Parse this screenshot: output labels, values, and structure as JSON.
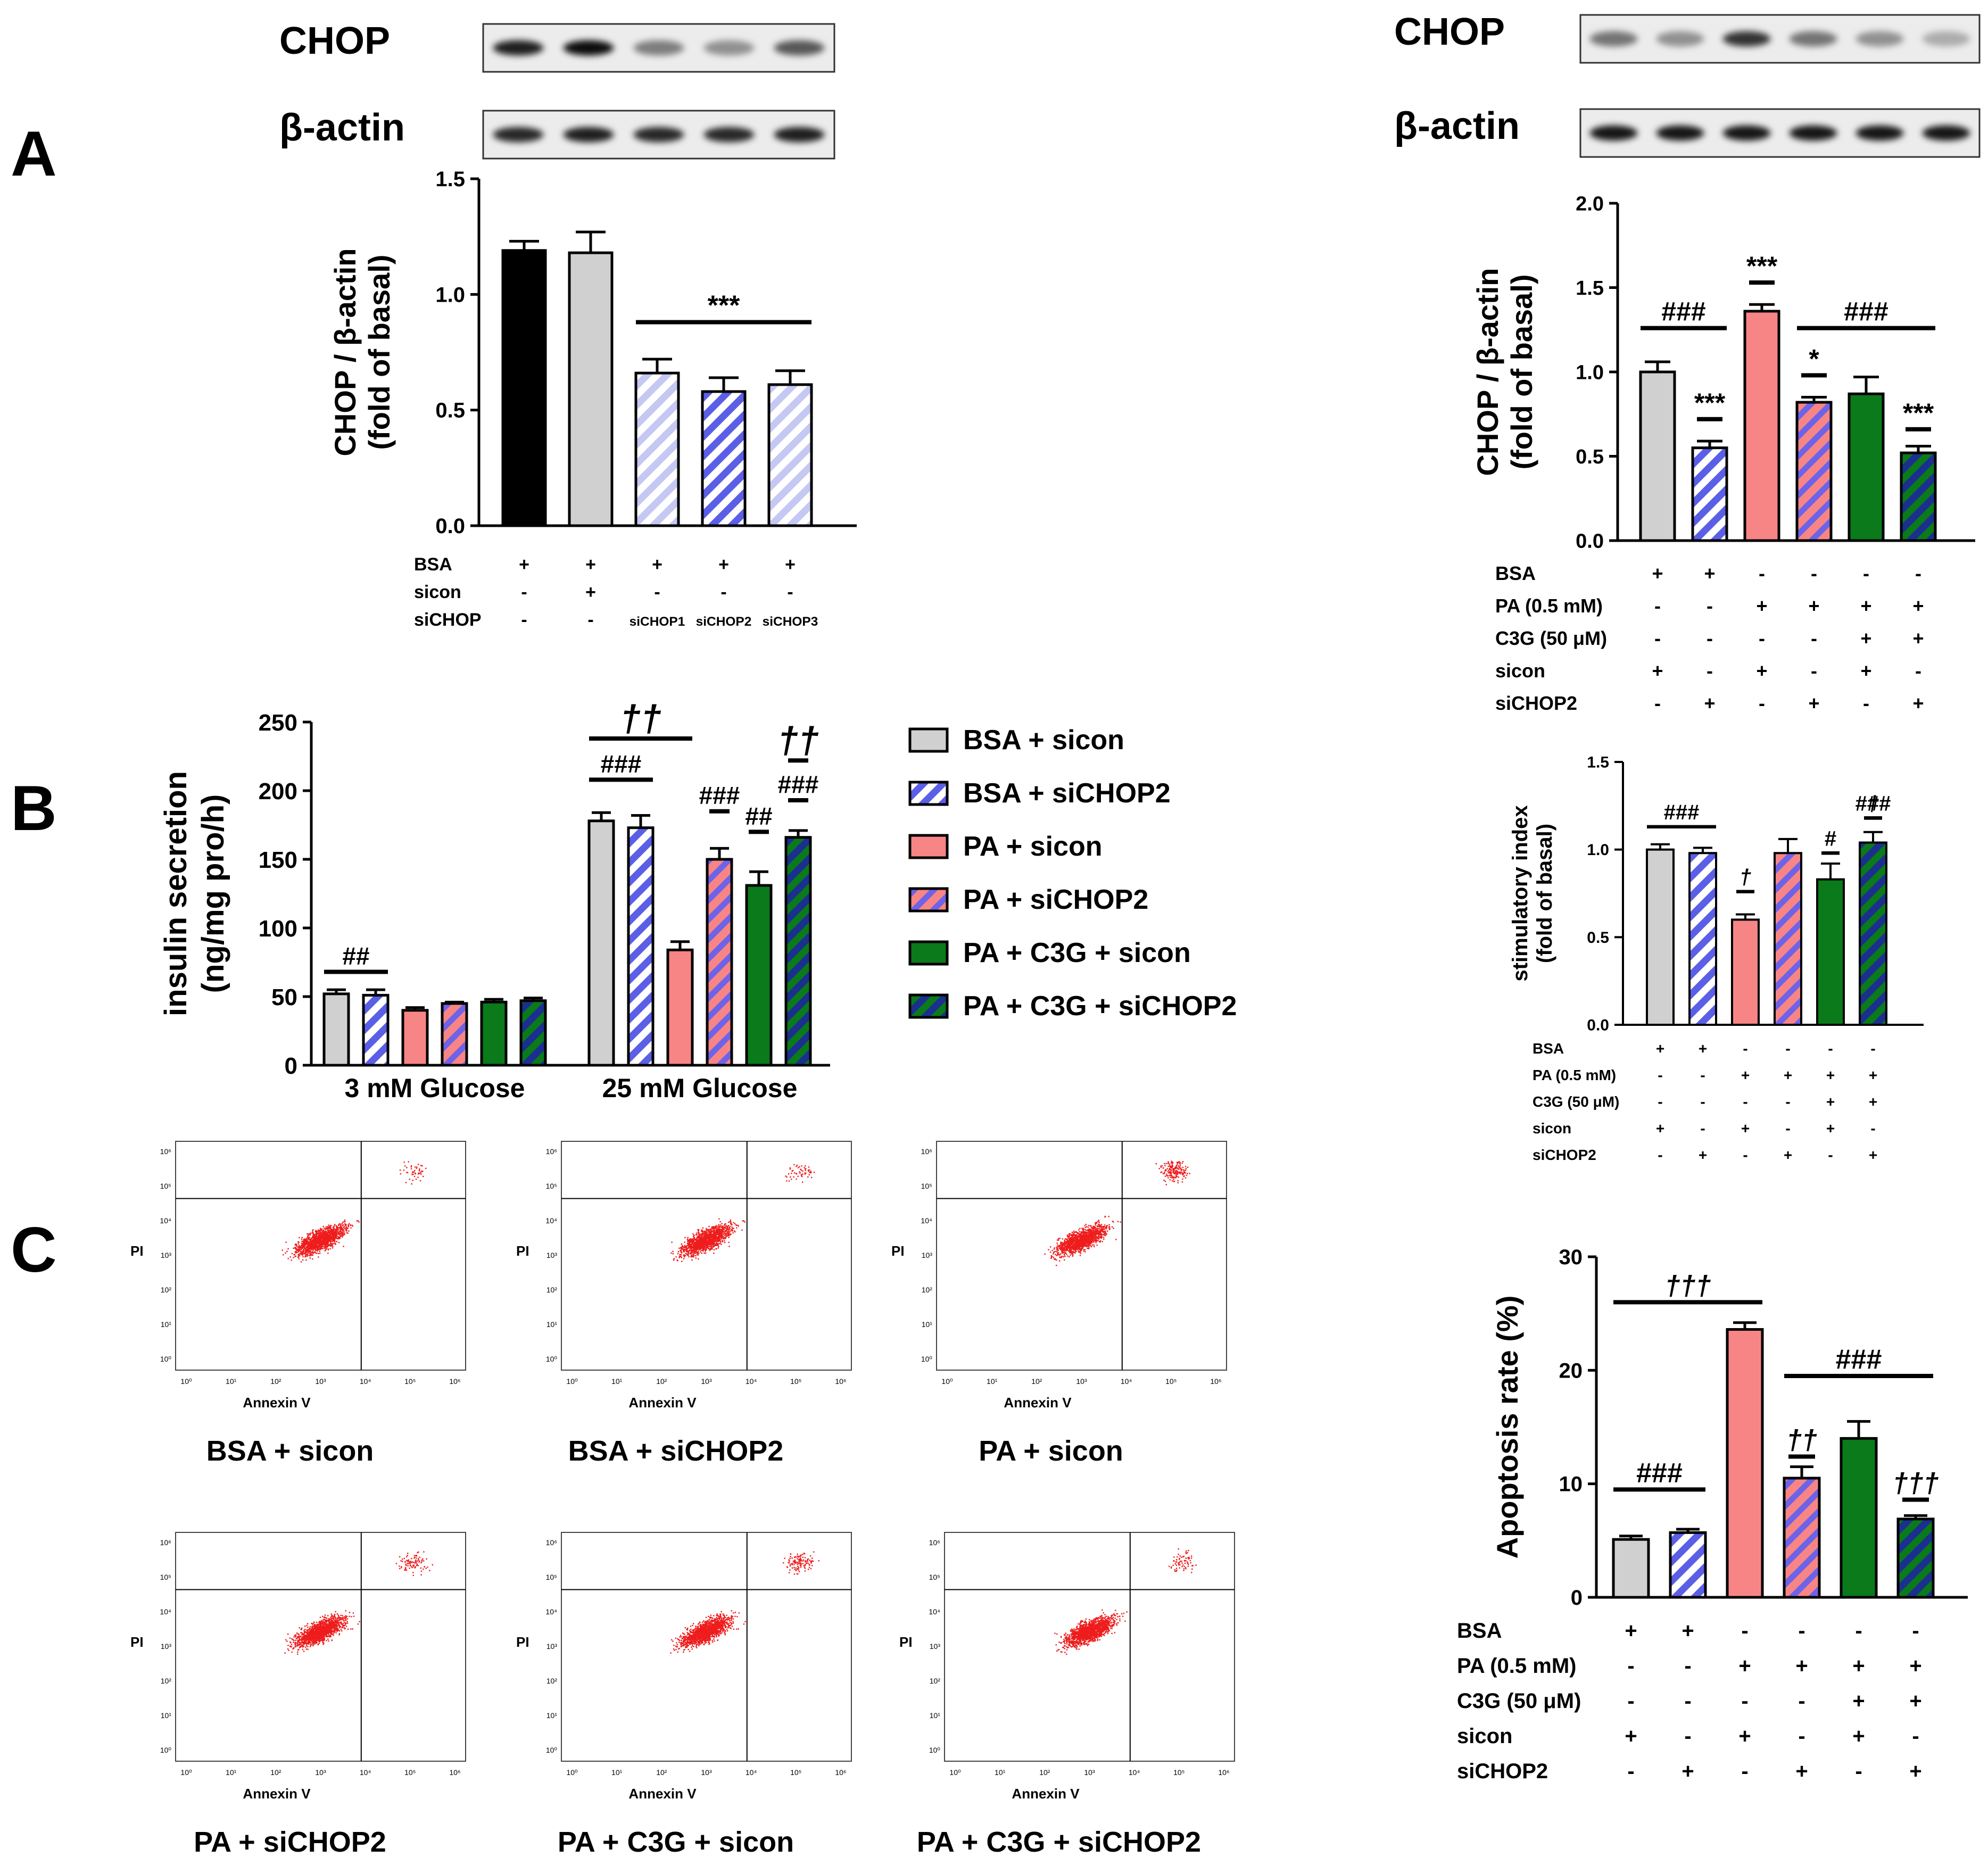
{
  "panel_labels": {
    "a": "A",
    "b": "B",
    "c": "C"
  },
  "colors": {
    "black": "#000000",
    "grey": "#d0d0d0",
    "blue": "#5b5fe6",
    "light_blue": "#c5c8f2",
    "pink": "#f88585",
    "pink_hatch": "#6e63e8",
    "green": "#0a7a1a",
    "navy": "#1b2f8f",
    "dots": "#ee1c1c"
  },
  "chart_data": [
    {
      "id": "A_left",
      "type": "bar",
      "blot_labels": [
        "CHOP",
        "β-actin"
      ],
      "ylabel_lines": [
        "CHOP / β-actin",
        "(fold of basal)"
      ],
      "ylim": [
        0,
        1.5
      ],
      "yticks": [
        "0.0",
        "0.5",
        "1.0",
        "1.5"
      ],
      "values": [
        1.19,
        1.18,
        0.66,
        0.58,
        0.61
      ],
      "errors": [
        0.04,
        0.09,
        0.06,
        0.06,
        0.06
      ],
      "fills": [
        "#000000",
        "#d0d0d0",
        "hatch-light",
        "hatch-blue",
        "hatch-light"
      ],
      "significance": [
        {
          "label": "***",
          "from": 2,
          "to": 4
        }
      ],
      "conditions": [
        {
          "name": "BSA",
          "marks": [
            "+",
            "+",
            "+",
            "+",
            "+"
          ]
        },
        {
          "name": "sicon",
          "marks": [
            "-",
            "+",
            "-",
            "-",
            "-"
          ]
        },
        {
          "name": "siCHOP",
          "marks": [
            "-",
            "-",
            "siCHOP1",
            "siCHOP2",
            "siCHOP3"
          ]
        }
      ]
    },
    {
      "id": "A_right",
      "type": "bar",
      "blot_labels": [
        "CHOP",
        "β-actin"
      ],
      "ylabel_lines": [
        "CHOP / β-actin",
        "(fold of basal)"
      ],
      "ylim": [
        0,
        2.0
      ],
      "yticks": [
        "0.0",
        "0.5",
        "1.0",
        "1.5",
        "2.0"
      ],
      "values": [
        1.0,
        0.55,
        1.36,
        0.82,
        0.87,
        0.52
      ],
      "errors": [
        0.06,
        0.04,
        0.04,
        0.03,
        0.1,
        0.04
      ],
      "fills": [
        "#d0d0d0",
        "hatch-blue",
        "#f88585",
        "hatch-pink",
        "#0a7a1a",
        "hatch-navy"
      ],
      "significance": [
        {
          "label": "###",
          "from": 0,
          "to": 1
        },
        {
          "label": "***",
          "from": 1,
          "to": 1
        },
        {
          "label": "***",
          "from": 2,
          "to": 2
        },
        {
          "label": "*",
          "from": 3,
          "to": 3
        },
        {
          "label": "###",
          "from": 3,
          "to": 5
        },
        {
          "label": "***",
          "from": 5,
          "to": 5
        }
      ],
      "conditions": [
        {
          "name": "BSA",
          "marks": [
            "+",
            "+",
            "-",
            "-",
            "-",
            "-"
          ]
        },
        {
          "name": "PA (0.5 mM)",
          "marks": [
            "-",
            "-",
            "+",
            "+",
            "+",
            "+"
          ]
        },
        {
          "name": "C3G (50 μM)",
          "marks": [
            "-",
            "-",
            "-",
            "-",
            "+",
            "+"
          ]
        },
        {
          "name": "sicon",
          "marks": [
            "+",
            "-",
            "+",
            "-",
            "+",
            "-"
          ]
        },
        {
          "name": "siCHOP2",
          "marks": [
            "-",
            "+",
            "-",
            "+",
            "-",
            "+"
          ]
        }
      ]
    },
    {
      "id": "B_insulin",
      "type": "bar",
      "ylabel_lines": [
        "insulin secretion",
        "(ng/mg pro/h)"
      ],
      "ylim": [
        0,
        250
      ],
      "yticks": [
        "0",
        "50",
        "100",
        "150",
        "200",
        "250"
      ],
      "categories": [
        "3 mM Glucose",
        "25 mM Glucose"
      ],
      "series": [
        {
          "name": "BSA + sicon",
          "fill": "#d0d0d0",
          "values": [
            52,
            178
          ],
          "errors": [
            3,
            6
          ]
        },
        {
          "name": "BSA + siCHOP2",
          "fill": "hatch-blue",
          "values": [
            51,
            173
          ],
          "errors": [
            4,
            9
          ]
        },
        {
          "name": "PA + sicon",
          "fill": "#f88585",
          "values": [
            40,
            84
          ],
          "errors": [
            2,
            6
          ]
        },
        {
          "name": "PA + siCHOP2",
          "fill": "hatch-pink",
          "values": [
            45,
            150
          ],
          "errors": [
            1,
            8
          ]
        },
        {
          "name": "PA + C3G + sicon",
          "fill": "#0a7a1a",
          "values": [
            46,
            131
          ],
          "errors": [
            2,
            10
          ]
        },
        {
          "name": "PA + C3G + siCHOP2",
          "fill": "hatch-navy",
          "values": [
            47,
            166
          ],
          "errors": [
            2,
            5
          ]
        }
      ],
      "significance": [
        {
          "label": "##",
          "group": 0,
          "from": 0,
          "to": 1
        },
        {
          "label": "††",
          "group": 1,
          "from": 0,
          "to": 2
        },
        {
          "label": "###",
          "group": 1,
          "from": 0,
          "to": 1
        },
        {
          "label": "###",
          "group": 1,
          "from": 3,
          "to": 3
        },
        {
          "label": "##",
          "group": 1,
          "from": 4,
          "to": 4
        },
        {
          "label": "###",
          "group": 1,
          "from": 5,
          "to": 5
        },
        {
          "label": "††",
          "group": 1,
          "from": 5,
          "to": 5
        }
      ]
    },
    {
      "id": "B_index",
      "type": "bar",
      "ylabel_lines": [
        "stimulatory index",
        "(fold of basal)"
      ],
      "ylim": [
        0,
        1.5
      ],
      "yticks": [
        "0.0",
        "0.5",
        "1.0",
        "1.5"
      ],
      "values": [
        1.0,
        0.98,
        0.6,
        0.98,
        0.83,
        1.04
      ],
      "errors": [
        0.03,
        0.03,
        0.03,
        0.08,
        0.09,
        0.06
      ],
      "fills": [
        "#d0d0d0",
        "hatch-blue",
        "#f88585",
        "hatch-pink",
        "#0a7a1a",
        "hatch-navy"
      ],
      "significance": [
        {
          "label": "###",
          "from": 0,
          "to": 1
        },
        {
          "label": "†",
          "from": 2,
          "to": 2
        },
        {
          "label": "#",
          "from": 4,
          "to": 4
        },
        {
          "label": "###",
          "from": 5,
          "to": 5
        },
        {
          "label": "†",
          "from": 5,
          "to": 5
        }
      ],
      "conditions": [
        {
          "name": "BSA",
          "marks": [
            "+",
            "+",
            "-",
            "-",
            "-",
            "-"
          ]
        },
        {
          "name": "PA (0.5 mM)",
          "marks": [
            "-",
            "-",
            "+",
            "+",
            "+",
            "+"
          ]
        },
        {
          "name": "C3G (50 μM)",
          "marks": [
            "-",
            "-",
            "-",
            "-",
            "+",
            "+"
          ]
        },
        {
          "name": "sicon",
          "marks": [
            "+",
            "-",
            "+",
            "-",
            "+",
            "-"
          ]
        },
        {
          "name": "siCHOP2",
          "marks": [
            "-",
            "+",
            "-",
            "+",
            "-",
            "+"
          ]
        }
      ]
    },
    {
      "id": "C_apoptosis",
      "type": "bar",
      "ylabel_lines": [
        "Apoptosis rate (%)"
      ],
      "ylim": [
        0,
        30
      ],
      "yticks": [
        "0",
        "10",
        "20",
        "30"
      ],
      "values": [
        5.1,
        5.7,
        23.6,
        10.5,
        14.0,
        6.9
      ],
      "errors": [
        0.3,
        0.3,
        0.6,
        1.0,
        1.5,
        0.3
      ],
      "fills": [
        "#d0d0d0",
        "hatch-blue",
        "#f88585",
        "hatch-pink",
        "#0a7a1a",
        "hatch-navy"
      ],
      "significance": [
        {
          "label": "†††",
          "from": 0,
          "to": 2
        },
        {
          "label": "###",
          "from": 0,
          "to": 1
        },
        {
          "label": "###",
          "from": 3,
          "to": 5
        },
        {
          "label": "††",
          "from": 3,
          "to": 3
        },
        {
          "label": "†††",
          "from": 5,
          "to": 5
        }
      ],
      "conditions": [
        {
          "name": "BSA",
          "marks": [
            "+",
            "+",
            "-",
            "-",
            "-",
            "-"
          ]
        },
        {
          "name": "PA (0.5 mM)",
          "marks": [
            "-",
            "-",
            "+",
            "+",
            "+",
            "+"
          ]
        },
        {
          "name": "C3G (50 μM)",
          "marks": [
            "-",
            "-",
            "-",
            "-",
            "+",
            "+"
          ]
        },
        {
          "name": "sicon",
          "marks": [
            "+",
            "-",
            "+",
            "-",
            "+",
            "-"
          ]
        },
        {
          "name": "siCHOP2",
          "marks": [
            "-",
            "+",
            "-",
            "+",
            "-",
            "+"
          ]
        }
      ]
    }
  ],
  "blots": {
    "left": {
      "chop": [
        0.9,
        1.0,
        0.4,
        0.3,
        0.6
      ],
      "actin": [
        0.85,
        0.9,
        0.85,
        0.85,
        0.9
      ]
    },
    "right": {
      "chop": [
        0.45,
        0.3,
        0.8,
        0.45,
        0.3,
        0.15
      ],
      "actin": [
        0.95,
        0.95,
        0.95,
        0.95,
        0.95,
        0.95
      ]
    }
  },
  "flow": {
    "xlabel": "Annexin V",
    "ylabel": "PI",
    "tick_labels": [
      "10⁰",
      "10¹",
      "10²",
      "10³",
      "10⁴",
      "10⁵",
      "10⁶"
    ],
    "plots": [
      {
        "caption": "BSA + sicon",
        "late_fraction": 0.03
      },
      {
        "caption": "BSA + siCHOP2",
        "late_fraction": 0.035
      },
      {
        "caption": "PA + sicon",
        "late_fraction": 0.12
      },
      {
        "caption": "PA + siCHOP2",
        "late_fraction": 0.06
      },
      {
        "caption": "PA + C3G + sicon",
        "late_fraction": 0.08
      },
      {
        "caption": "PA + C3G + siCHOP2",
        "late_fraction": 0.045
      }
    ]
  }
}
